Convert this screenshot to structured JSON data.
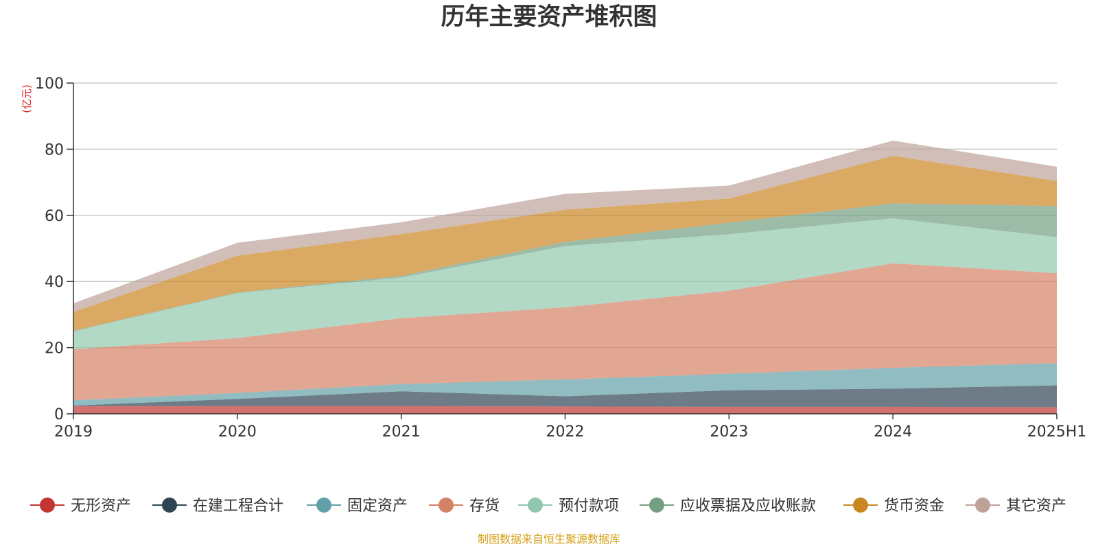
{
  "chart_data": {
    "type": "area",
    "stacked": true,
    "title": "历年主要资产堆积图",
    "unit_label": "(亿元)",
    "source": "制图数据来自恒生聚源数据库",
    "x": [
      "2019",
      "2020",
      "2021",
      "2022",
      "2023",
      "2024",
      "2025H1"
    ],
    "y_ticks": [
      "0",
      "20",
      "40",
      "60",
      "80",
      "100"
    ],
    "ylim": [
      0,
      100
    ],
    "grid": true,
    "legend_position": "bottom",
    "series": [
      {
        "name": "无形资产",
        "color": "#c23531",
        "values": [
          2.3,
          2.3,
          2.3,
          2.2,
          2.1,
          2.1,
          2.0
        ]
      },
      {
        "name": "在建工程合计",
        "color": "#2f4554",
        "values": [
          0.2,
          2.2,
          4.5,
          3.1,
          5.0,
          5.5,
          6.6
        ]
      },
      {
        "name": "固定资产",
        "color": "#61a0a8",
        "values": [
          1.6,
          1.8,
          2.2,
          5.1,
          5.0,
          6.3,
          6.7
        ]
      },
      {
        "name": "存货",
        "color": "#d48265",
        "values": [
          15.4,
          16.6,
          19.9,
          21.8,
          25.1,
          31.6,
          27.2
        ]
      },
      {
        "name": "预付款项",
        "color": "#91c7ae",
        "values": [
          5.4,
          13.6,
          12.3,
          18.5,
          17.1,
          13.6,
          10.9
        ]
      },
      {
        "name": "应收票据及应收账款",
        "color": "#749f83",
        "values": [
          0.2,
          0.2,
          0.5,
          1.3,
          3.5,
          4.5,
          9.4
        ]
      },
      {
        "name": "货币资金",
        "color": "#ca8622",
        "values": [
          5.7,
          11.1,
          12.6,
          9.7,
          7.3,
          14.4,
          7.6
        ]
      },
      {
        "name": "其它资产",
        "color": "#bda29a",
        "values": [
          2.6,
          3.9,
          3.6,
          4.8,
          3.9,
          4.6,
          4.3
        ]
      }
    ]
  }
}
